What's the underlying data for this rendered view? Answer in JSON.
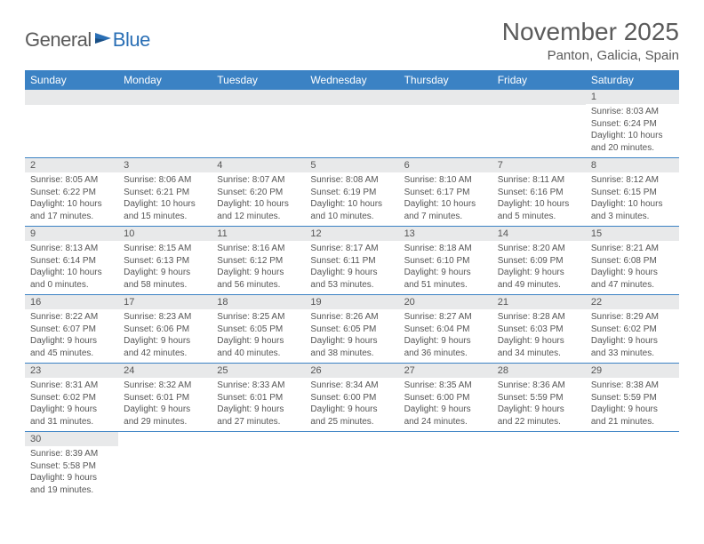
{
  "logo": {
    "text1": "General",
    "text2": "Blue"
  },
  "title": "November 2025",
  "location": "Panton, Galicia, Spain",
  "colors": {
    "header_bg": "#3b82c4",
    "header_text": "#ffffff",
    "daynum_bg": "#e8e9ea",
    "border": "#3b82c4",
    "logo_blue": "#2a6fb5",
    "text": "#5a5a5a"
  },
  "dayHeaders": [
    "Sunday",
    "Monday",
    "Tuesday",
    "Wednesday",
    "Thursday",
    "Friday",
    "Saturday"
  ],
  "weeks": [
    [
      null,
      null,
      null,
      null,
      null,
      null,
      {
        "n": "1",
        "sr": "Sunrise: 8:03 AM",
        "ss": "Sunset: 6:24 PM",
        "dl": "Daylight: 10 hours and 20 minutes."
      }
    ],
    [
      {
        "n": "2",
        "sr": "Sunrise: 8:05 AM",
        "ss": "Sunset: 6:22 PM",
        "dl": "Daylight: 10 hours and 17 minutes."
      },
      {
        "n": "3",
        "sr": "Sunrise: 8:06 AM",
        "ss": "Sunset: 6:21 PM",
        "dl": "Daylight: 10 hours and 15 minutes."
      },
      {
        "n": "4",
        "sr": "Sunrise: 8:07 AM",
        "ss": "Sunset: 6:20 PM",
        "dl": "Daylight: 10 hours and 12 minutes."
      },
      {
        "n": "5",
        "sr": "Sunrise: 8:08 AM",
        "ss": "Sunset: 6:19 PM",
        "dl": "Daylight: 10 hours and 10 minutes."
      },
      {
        "n": "6",
        "sr": "Sunrise: 8:10 AM",
        "ss": "Sunset: 6:17 PM",
        "dl": "Daylight: 10 hours and 7 minutes."
      },
      {
        "n": "7",
        "sr": "Sunrise: 8:11 AM",
        "ss": "Sunset: 6:16 PM",
        "dl": "Daylight: 10 hours and 5 minutes."
      },
      {
        "n": "8",
        "sr": "Sunrise: 8:12 AM",
        "ss": "Sunset: 6:15 PM",
        "dl": "Daylight: 10 hours and 3 minutes."
      }
    ],
    [
      {
        "n": "9",
        "sr": "Sunrise: 8:13 AM",
        "ss": "Sunset: 6:14 PM",
        "dl": "Daylight: 10 hours and 0 minutes."
      },
      {
        "n": "10",
        "sr": "Sunrise: 8:15 AM",
        "ss": "Sunset: 6:13 PM",
        "dl": "Daylight: 9 hours and 58 minutes."
      },
      {
        "n": "11",
        "sr": "Sunrise: 8:16 AM",
        "ss": "Sunset: 6:12 PM",
        "dl": "Daylight: 9 hours and 56 minutes."
      },
      {
        "n": "12",
        "sr": "Sunrise: 8:17 AM",
        "ss": "Sunset: 6:11 PM",
        "dl": "Daylight: 9 hours and 53 minutes."
      },
      {
        "n": "13",
        "sr": "Sunrise: 8:18 AM",
        "ss": "Sunset: 6:10 PM",
        "dl": "Daylight: 9 hours and 51 minutes."
      },
      {
        "n": "14",
        "sr": "Sunrise: 8:20 AM",
        "ss": "Sunset: 6:09 PM",
        "dl": "Daylight: 9 hours and 49 minutes."
      },
      {
        "n": "15",
        "sr": "Sunrise: 8:21 AM",
        "ss": "Sunset: 6:08 PM",
        "dl": "Daylight: 9 hours and 47 minutes."
      }
    ],
    [
      {
        "n": "16",
        "sr": "Sunrise: 8:22 AM",
        "ss": "Sunset: 6:07 PM",
        "dl": "Daylight: 9 hours and 45 minutes."
      },
      {
        "n": "17",
        "sr": "Sunrise: 8:23 AM",
        "ss": "Sunset: 6:06 PM",
        "dl": "Daylight: 9 hours and 42 minutes."
      },
      {
        "n": "18",
        "sr": "Sunrise: 8:25 AM",
        "ss": "Sunset: 6:05 PM",
        "dl": "Daylight: 9 hours and 40 minutes."
      },
      {
        "n": "19",
        "sr": "Sunrise: 8:26 AM",
        "ss": "Sunset: 6:05 PM",
        "dl": "Daylight: 9 hours and 38 minutes."
      },
      {
        "n": "20",
        "sr": "Sunrise: 8:27 AM",
        "ss": "Sunset: 6:04 PM",
        "dl": "Daylight: 9 hours and 36 minutes."
      },
      {
        "n": "21",
        "sr": "Sunrise: 8:28 AM",
        "ss": "Sunset: 6:03 PM",
        "dl": "Daylight: 9 hours and 34 minutes."
      },
      {
        "n": "22",
        "sr": "Sunrise: 8:29 AM",
        "ss": "Sunset: 6:02 PM",
        "dl": "Daylight: 9 hours and 33 minutes."
      }
    ],
    [
      {
        "n": "23",
        "sr": "Sunrise: 8:31 AM",
        "ss": "Sunset: 6:02 PM",
        "dl": "Daylight: 9 hours and 31 minutes."
      },
      {
        "n": "24",
        "sr": "Sunrise: 8:32 AM",
        "ss": "Sunset: 6:01 PM",
        "dl": "Daylight: 9 hours and 29 minutes."
      },
      {
        "n": "25",
        "sr": "Sunrise: 8:33 AM",
        "ss": "Sunset: 6:01 PM",
        "dl": "Daylight: 9 hours and 27 minutes."
      },
      {
        "n": "26",
        "sr": "Sunrise: 8:34 AM",
        "ss": "Sunset: 6:00 PM",
        "dl": "Daylight: 9 hours and 25 minutes."
      },
      {
        "n": "27",
        "sr": "Sunrise: 8:35 AM",
        "ss": "Sunset: 6:00 PM",
        "dl": "Daylight: 9 hours and 24 minutes."
      },
      {
        "n": "28",
        "sr": "Sunrise: 8:36 AM",
        "ss": "Sunset: 5:59 PM",
        "dl": "Daylight: 9 hours and 22 minutes."
      },
      {
        "n": "29",
        "sr": "Sunrise: 8:38 AM",
        "ss": "Sunset: 5:59 PM",
        "dl": "Daylight: 9 hours and 21 minutes."
      }
    ],
    [
      {
        "n": "30",
        "sr": "Sunrise: 8:39 AM",
        "ss": "Sunset: 5:58 PM",
        "dl": "Daylight: 9 hours and 19 minutes."
      },
      null,
      null,
      null,
      null,
      null,
      null
    ]
  ]
}
